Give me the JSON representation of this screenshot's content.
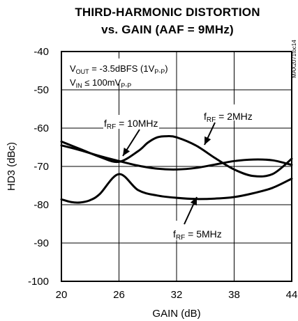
{
  "chart_data": {
    "type": "line",
    "title_line1": "THIRD-HARMONIC DISTORTION",
    "title_line2": "vs. GAIN (AAF = 9MHz)",
    "xlabel": "GAIN (dB)",
    "ylabel": "HD3 (dBc)",
    "xlim": [
      20,
      44
    ],
    "ylim": [
      -100,
      -40
    ],
    "xticks": [
      20,
      26,
      32,
      38,
      44
    ],
    "yticks": [
      -40,
      -50,
      -60,
      -70,
      -80,
      -90,
      -100
    ],
    "grid": true,
    "side_label": "MAX2071toc14",
    "conditions": [
      {
        "main": "V",
        "sub": "OUT",
        "rest": " = -3.5dBFS (1V",
        "sub2": "P-P",
        "rest2": ")"
      },
      {
        "main": "V",
        "sub": "IN",
        "rest": " ≤ 100mV",
        "sub2": "P-P",
        "rest2": ""
      }
    ],
    "series": [
      {
        "name": "fRF = 10MHz",
        "label_main": "f",
        "label_sub": "RF",
        "label_rest": " = 10MHz",
        "x": [
          20,
          22,
          24,
          26,
          28,
          30,
          32,
          34,
          36,
          38,
          40,
          42,
          44
        ],
        "y": [
          -64.5,
          -65.8,
          -67.3,
          -68.6,
          -69.8,
          -70.6,
          -70.8,
          -70.4,
          -69.5,
          -68.6,
          -68.2,
          -68.4,
          -69.6
        ]
      },
      {
        "name": "fRF = 2MHz",
        "label_main": "f",
        "label_sub": "RF",
        "label_rest": " = 2MHz",
        "x": [
          20,
          22,
          24,
          26,
          28,
          29,
          30,
          31,
          32,
          34,
          36,
          38,
          40,
          42,
          44
        ],
        "y": [
          -63.5,
          -65.5,
          -67.5,
          -68.8,
          -66,
          -63.8,
          -62.4,
          -62.1,
          -62.4,
          -64.5,
          -67.8,
          -70.8,
          -72.5,
          -72.0,
          -68.0
        ]
      },
      {
        "name": "fRF = 5MHz",
        "label_main": "f",
        "label_sub": "RF",
        "label_rest": " = 5MHz",
        "x": [
          20,
          21,
          22,
          23,
          24,
          26,
          28,
          30,
          32,
          34,
          36,
          38,
          40,
          42,
          44
        ],
        "y": [
          -78.6,
          -79.3,
          -79.4,
          -78.8,
          -77.2,
          -72.0,
          -76.2,
          -77.6,
          -78.2,
          -78.5,
          -78.4,
          -78.0,
          -77.0,
          -75.6,
          -73.2
        ]
      }
    ]
  }
}
